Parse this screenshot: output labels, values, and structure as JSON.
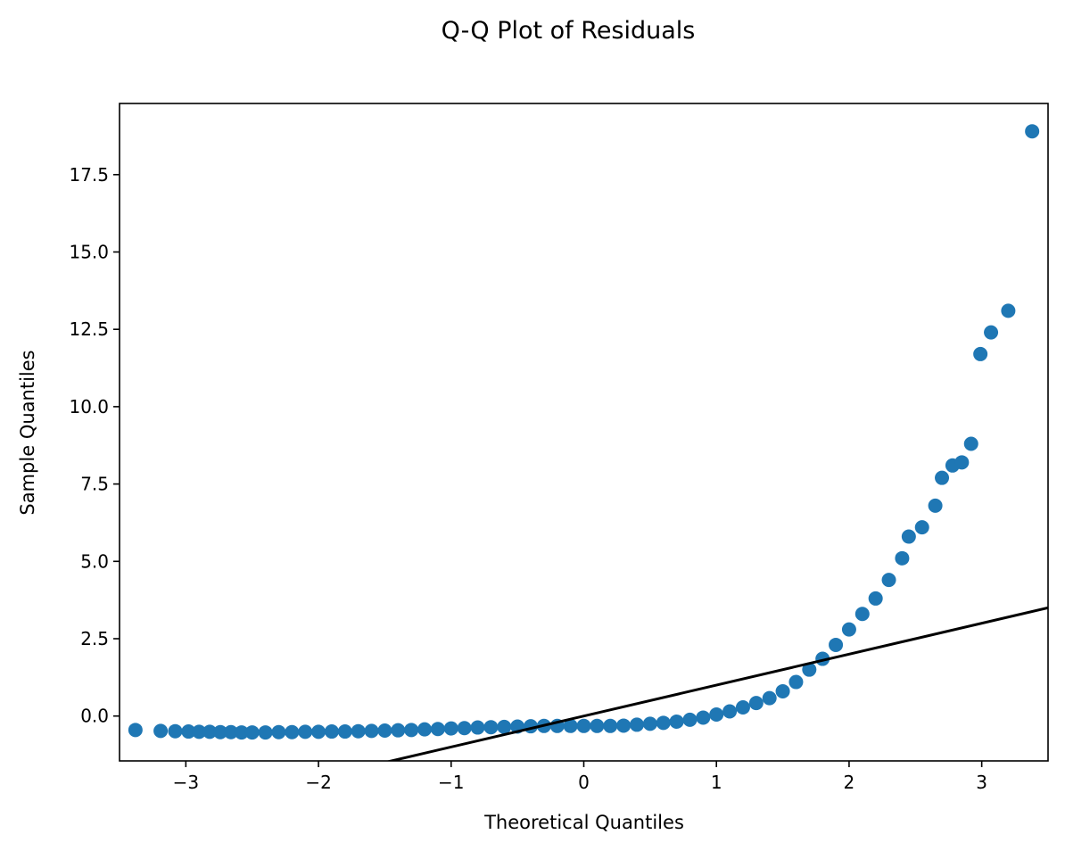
{
  "chart_data": {
    "type": "scatter",
    "title": "Q-Q Plot of Residuals",
    "xlabel": "Theoretical Quantiles",
    "ylabel": "Sample Quantiles",
    "xlim": [
      -3.5,
      3.5
    ],
    "ylim": [
      -1.45,
      19.8
    ],
    "x_ticks": [
      -3,
      -2,
      -1,
      0,
      1,
      2,
      3
    ],
    "x_tick_labels": [
      "−3",
      "−2",
      "−1",
      "0",
      "1",
      "2",
      "3"
    ],
    "y_ticks": [
      0.0,
      2.5,
      5.0,
      7.5,
      10.0,
      12.5,
      15.0,
      17.5
    ],
    "y_tick_labels": [
      "0.0",
      "2.5",
      "5.0",
      "7.5",
      "10.0",
      "12.5",
      "15.0",
      "17.5"
    ],
    "grid": false,
    "legend": null,
    "point_color": "#1f77b4",
    "line_color": "#000000",
    "reference_line": {
      "slope": 1.0,
      "intercept": 0.0
    },
    "points": [
      [
        -3.38,
        -0.45
      ],
      [
        -3.19,
        -0.48
      ],
      [
        -3.08,
        -0.49
      ],
      [
        -2.98,
        -0.5
      ],
      [
        -2.9,
        -0.51
      ],
      [
        -2.82,
        -0.51
      ],
      [
        -2.74,
        -0.52
      ],
      [
        -2.66,
        -0.52
      ],
      [
        -2.58,
        -0.53
      ],
      [
        -2.5,
        -0.53
      ],
      [
        -2.4,
        -0.53
      ],
      [
        -2.3,
        -0.52
      ],
      [
        -2.2,
        -0.52
      ],
      [
        -2.1,
        -0.51
      ],
      [
        -2.0,
        -0.51
      ],
      [
        -1.9,
        -0.5
      ],
      [
        -1.8,
        -0.5
      ],
      [
        -1.7,
        -0.49
      ],
      [
        -1.6,
        -0.48
      ],
      [
        -1.5,
        -0.47
      ],
      [
        -1.4,
        -0.46
      ],
      [
        -1.3,
        -0.45
      ],
      [
        -1.2,
        -0.43
      ],
      [
        -1.1,
        -0.42
      ],
      [
        -1.0,
        -0.4
      ],
      [
        -0.9,
        -0.39
      ],
      [
        -0.8,
        -0.37
      ],
      [
        -0.7,
        -0.36
      ],
      [
        -0.6,
        -0.35
      ],
      [
        -0.5,
        -0.34
      ],
      [
        -0.4,
        -0.33
      ],
      [
        -0.3,
        -0.32
      ],
      [
        -0.2,
        -0.32
      ],
      [
        -0.1,
        -0.32
      ],
      [
        0.0,
        -0.32
      ],
      [
        0.1,
        -0.32
      ],
      [
        0.2,
        -0.32
      ],
      [
        0.3,
        -0.31
      ],
      [
        0.4,
        -0.28
      ],
      [
        0.5,
        -0.25
      ],
      [
        0.6,
        -0.22
      ],
      [
        0.7,
        -0.18
      ],
      [
        0.8,
        -0.12
      ],
      [
        0.9,
        -0.05
      ],
      [
        1.0,
        0.05
      ],
      [
        1.1,
        0.15
      ],
      [
        1.2,
        0.28
      ],
      [
        1.3,
        0.42
      ],
      [
        1.4,
        0.58
      ],
      [
        1.5,
        0.8
      ],
      [
        1.6,
        1.1
      ],
      [
        1.7,
        1.5
      ],
      [
        1.8,
        1.85
      ],
      [
        1.9,
        2.3
      ],
      [
        2.0,
        2.8
      ],
      [
        2.1,
        3.3
      ],
      [
        2.2,
        3.8
      ],
      [
        2.3,
        4.4
      ],
      [
        2.4,
        5.1
      ],
      [
        2.45,
        5.8
      ],
      [
        2.55,
        6.1
      ],
      [
        2.65,
        6.8
      ],
      [
        2.7,
        7.7
      ],
      [
        2.78,
        8.1
      ],
      [
        2.85,
        8.2
      ],
      [
        2.92,
        8.8
      ],
      [
        2.99,
        11.7
      ],
      [
        3.07,
        12.4
      ],
      [
        3.2,
        13.1
      ],
      [
        3.38,
        18.9
      ]
    ]
  }
}
